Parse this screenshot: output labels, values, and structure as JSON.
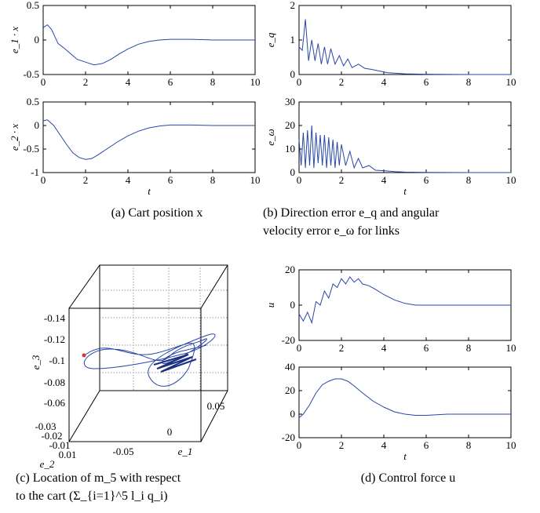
{
  "captions": {
    "a": "(a) Cart position x",
    "b_line1": "(b) Direction error e_q and angular",
    "b_line2": "velocity error e_ω for links",
    "c_line1": "(c) Location of m_5 with respect",
    "c_line2": "to the cart (Σ_{i=1}^5 l_i q_i)",
    "d": "(d) Control force u"
  },
  "colors": {
    "line": "#2a47a8",
    "marker": "#e03030"
  },
  "chart_data": [
    {
      "id": "a1",
      "type": "line",
      "ylabel": "e_1 · x",
      "xlabel": "",
      "xlim": [
        0,
        10
      ],
      "ylim": [
        -0.5,
        0.5
      ],
      "xticks": [
        "0",
        "2",
        "4",
        "6",
        "8",
        "10"
      ],
      "yticks": [
        "-0.5",
        "0",
        "0.5"
      ],
      "series": [
        {
          "x": [
            0,
            0.2,
            0.4,
            0.7,
            1.0,
            1.3,
            1.6,
            2.0,
            2.4,
            2.8,
            3.2,
            3.6,
            4.0,
            4.5,
            5.0,
            5.5,
            6.0,
            6.5,
            7.0,
            8.0,
            9.0,
            10.0
          ],
          "y": [
            0.18,
            0.22,
            0.15,
            -0.05,
            -0.12,
            -0.2,
            -0.28,
            -0.32,
            -0.36,
            -0.34,
            -0.28,
            -0.2,
            -0.13,
            -0.06,
            -0.02,
            0,
            0.01,
            0.01,
            0.01,
            0,
            0,
            0
          ]
        }
      ]
    },
    {
      "id": "a2",
      "type": "line",
      "ylabel": "e_2 · x",
      "xlabel": "t",
      "xlim": [
        0,
        10
      ],
      "ylim": [
        -1,
        0.5
      ],
      "xticks": [
        "0",
        "2",
        "4",
        "6",
        "8",
        "10"
      ],
      "yticks": [
        "-1",
        "-0.5",
        "0",
        "0.5"
      ],
      "series": [
        {
          "x": [
            0,
            0.2,
            0.5,
            0.8,
            1.1,
            1.4,
            1.7,
            2.0,
            2.3,
            2.6,
            3.0,
            3.5,
            4.0,
            4.5,
            5.0,
            5.5,
            6.0,
            6.5,
            7.0,
            8.0,
            9.0,
            10.0
          ],
          "y": [
            0.1,
            0.12,
            0.0,
            -0.2,
            -0.4,
            -0.58,
            -0.68,
            -0.72,
            -0.7,
            -0.62,
            -0.5,
            -0.35,
            -0.22,
            -0.12,
            -0.05,
            -0.01,
            0.01,
            0.01,
            0.01,
            0,
            0,
            0
          ]
        }
      ]
    },
    {
      "id": "b1",
      "type": "line",
      "ylabel": "e_q",
      "xlabel": "",
      "xlim": [
        0,
        10
      ],
      "ylim": [
        0,
        2
      ],
      "xticks": [
        "0",
        "2",
        "4",
        "6",
        "8",
        "10"
      ],
      "yticks": [
        "0",
        "1",
        "2"
      ],
      "series": [
        {
          "x": [
            0,
            0.15,
            0.3,
            0.45,
            0.6,
            0.75,
            0.9,
            1.05,
            1.2,
            1.35,
            1.5,
            1.7,
            1.9,
            2.1,
            2.3,
            2.5,
            2.8,
            3.1,
            3.4,
            3.8,
            4.2,
            5.0,
            6.0,
            8.0,
            10.0
          ],
          "y": [
            0.8,
            0.7,
            1.6,
            0.4,
            1.0,
            0.4,
            0.9,
            0.3,
            0.8,
            0.3,
            0.75,
            0.3,
            0.55,
            0.25,
            0.45,
            0.2,
            0.3,
            0.18,
            0.15,
            0.1,
            0.05,
            0.02,
            0.01,
            0,
            0
          ]
        }
      ]
    },
    {
      "id": "b2",
      "type": "line",
      "ylabel": "e_ω",
      "xlabel": "t",
      "xlim": [
        0,
        10
      ],
      "ylim": [
        0,
        30
      ],
      "xticks": [
        "0",
        "2",
        "4",
        "6",
        "8",
        "10"
      ],
      "yticks": [
        "0",
        "10",
        "20",
        "30"
      ],
      "series": [
        {
          "x": [
            0,
            0.1,
            0.2,
            0.3,
            0.4,
            0.5,
            0.6,
            0.7,
            0.8,
            0.9,
            1.0,
            1.1,
            1.2,
            1.3,
            1.4,
            1.5,
            1.6,
            1.7,
            1.8,
            1.9,
            2.0,
            2.2,
            2.4,
            2.6,
            2.8,
            3.0,
            3.3,
            3.6,
            4.0,
            4.5,
            5.0,
            6.0,
            8.0,
            10.0
          ],
          "y": [
            14,
            3,
            17,
            2,
            18,
            3,
            20,
            2,
            17,
            4,
            16,
            3,
            16,
            2,
            15,
            3,
            14,
            2,
            13,
            3,
            12,
            3,
            9,
            2,
            6,
            2,
            3,
            1,
            0.8,
            0.4,
            0.2,
            0.1,
            0,
            0
          ]
        }
      ]
    },
    {
      "id": "c",
      "type": "scatter",
      "ylabel": "e_3",
      "xlabel": "e_1",
      "x2label": "e_2",
      "zticks": [
        "-0.14",
        "-0.12",
        "-0.1",
        "-0.08",
        "-0.06"
      ],
      "xticks": [
        "-0.05",
        "0",
        "0.05"
      ],
      "yticks": [
        "-0.03",
        "-0.02",
        "-0.01",
        "0.01"
      ],
      "series": [
        {
          "path": [
            [
              -0.06,
              -0.11
            ],
            [
              -0.03,
              -0.12
            ],
            [
              0.02,
              -0.11
            ],
            [
              0.05,
              -0.13
            ],
            [
              0.01,
              -0.09
            ],
            [
              -0.04,
              -0.08
            ],
            [
              -0.02,
              -0.1
            ],
            [
              0.03,
              -0.12
            ],
            [
              0.05,
              -0.1
            ],
            [
              0.0,
              -0.095
            ],
            [
              0.02,
              -0.105
            ],
            [
              0.04,
              -0.11
            ]
          ]
        }
      ]
    },
    {
      "id": "d1",
      "type": "line",
      "ylabel": "u",
      "xlabel": "",
      "xlim": [
        0,
        10
      ],
      "ylim": [
        -20,
        20
      ],
      "xticks": [
        "0",
        "2",
        "4",
        "6",
        "8",
        "10"
      ],
      "yticks": [
        "-20",
        "0",
        "20"
      ],
      "series": [
        {
          "x": [
            0,
            0.2,
            0.4,
            0.6,
            0.8,
            1.0,
            1.2,
            1.4,
            1.6,
            1.8,
            2.0,
            2.2,
            2.4,
            2.6,
            2.8,
            3.0,
            3.3,
            3.6,
            4.0,
            4.5,
            5.0,
            5.5,
            6.0,
            7.0,
            8.0,
            10.0
          ],
          "y": [
            -5,
            -9,
            -4,
            -10,
            2,
            0,
            8,
            4,
            12,
            10,
            15,
            12,
            16,
            13,
            15,
            12,
            11,
            9,
            6,
            3,
            1,
            0,
            0,
            0,
            0,
            0
          ]
        }
      ]
    },
    {
      "id": "d2",
      "type": "line",
      "ylabel": "",
      "xlabel": "t",
      "xlim": [
        0,
        10
      ],
      "ylim": [
        -20,
        40
      ],
      "xticks": [
        "0",
        "2",
        "4",
        "6",
        "8",
        "10"
      ],
      "yticks": [
        "-20",
        "0",
        "20",
        "40"
      ],
      "series": [
        {
          "x": [
            0,
            0.2,
            0.5,
            0.8,
            1.1,
            1.4,
            1.7,
            2.0,
            2.3,
            2.6,
            3.0,
            3.5,
            4.0,
            4.5,
            5.0,
            5.5,
            6.0,
            7.0,
            8.0,
            10.0
          ],
          "y": [
            -3,
            0,
            8,
            18,
            25,
            28,
            30,
            30,
            28,
            24,
            18,
            11,
            6,
            2,
            0,
            -1,
            -1,
            0,
            0,
            0
          ]
        }
      ]
    }
  ]
}
